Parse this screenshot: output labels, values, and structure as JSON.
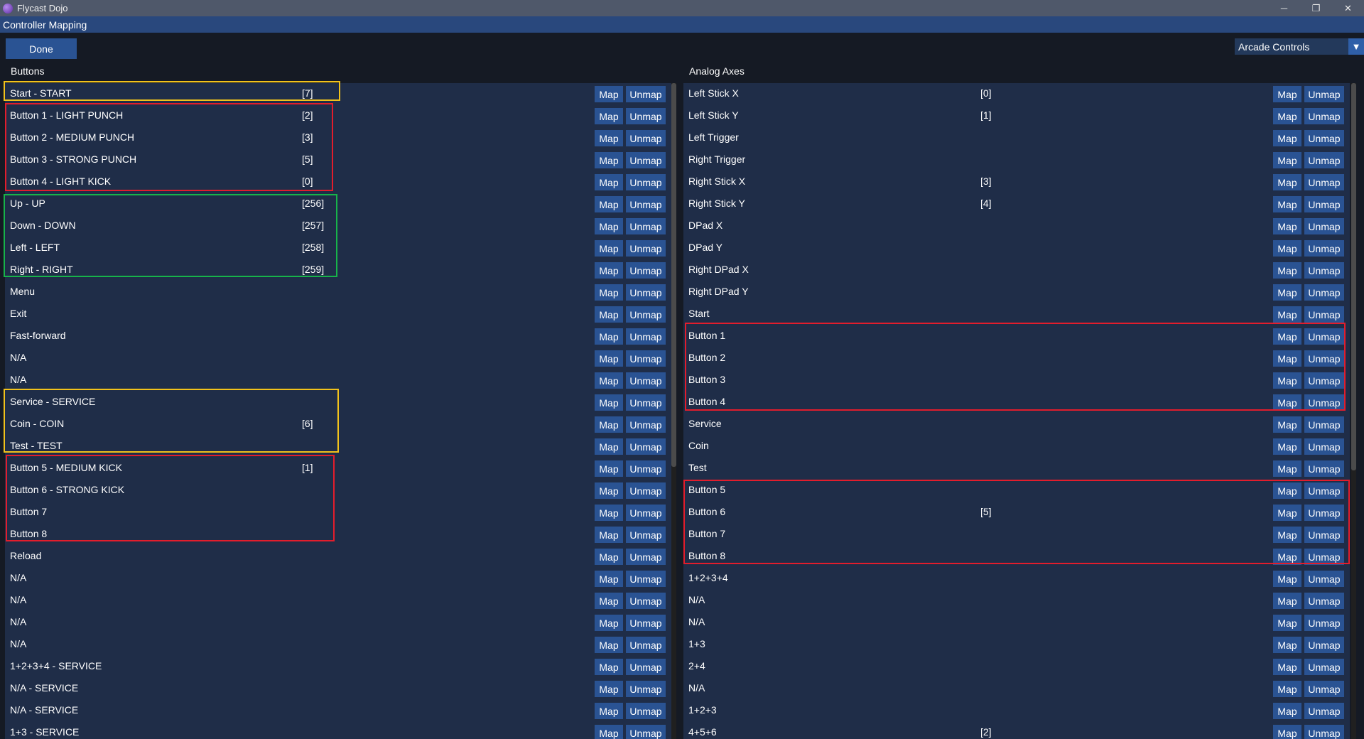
{
  "window": {
    "title": "Flycast Dojo",
    "minimize": "─",
    "restore": "❐",
    "close": "✕"
  },
  "header": {
    "title": "Controller Mapping"
  },
  "toolbar": {
    "done_label": "Done",
    "mode_value": "Arcade Controls",
    "mode_arrow": "▼"
  },
  "buttons_section": {
    "title": "Buttons",
    "rows": [
      {
        "label": "Start - START",
        "code": "[7]"
      },
      {
        "label": "Button 1 - LIGHT PUNCH",
        "code": "[2]"
      },
      {
        "label": "Button 2 - MEDIUM PUNCH",
        "code": "[3]"
      },
      {
        "label": "Button 3 - STRONG PUNCH",
        "code": "[5]"
      },
      {
        "label": "Button 4 - LIGHT KICK",
        "code": "[0]"
      },
      {
        "label": "Up - UP",
        "code": "[256]"
      },
      {
        "label": "Down - DOWN",
        "code": "[257]"
      },
      {
        "label": "Left - LEFT",
        "code": "[258]"
      },
      {
        "label": "Right - RIGHT",
        "code": "[259]"
      },
      {
        "label": "Menu",
        "code": ""
      },
      {
        "label": "Exit",
        "code": ""
      },
      {
        "label": "Fast-forward",
        "code": ""
      },
      {
        "label": "N/A",
        "code": ""
      },
      {
        "label": "N/A",
        "code": ""
      },
      {
        "label": "Service - SERVICE",
        "code": ""
      },
      {
        "label": "Coin - COIN",
        "code": "[6]"
      },
      {
        "label": "Test - TEST",
        "code": ""
      },
      {
        "label": "Button 5 - MEDIUM KICK",
        "code": "[1]"
      },
      {
        "label": "Button 6 - STRONG KICK",
        "code": ""
      },
      {
        "label": "Button 7",
        "code": ""
      },
      {
        "label": "Button 8",
        "code": ""
      },
      {
        "label": "Reload",
        "code": ""
      },
      {
        "label": "N/A",
        "code": ""
      },
      {
        "label": "N/A",
        "code": ""
      },
      {
        "label": "N/A",
        "code": ""
      },
      {
        "label": "N/A",
        "code": ""
      },
      {
        "label": "1+2+3+4 - SERVICE",
        "code": ""
      },
      {
        "label": "N/A - SERVICE",
        "code": ""
      },
      {
        "label": "N/A - SERVICE",
        "code": ""
      },
      {
        "label": "1+3 - SERVICE",
        "code": ""
      }
    ]
  },
  "axes_section": {
    "title": "Analog Axes",
    "rows": [
      {
        "label": "Left Stick X",
        "code": "[0]"
      },
      {
        "label": "Left Stick Y",
        "code": "[1]"
      },
      {
        "label": "Left Trigger",
        "code": ""
      },
      {
        "label": "Right Trigger",
        "code": ""
      },
      {
        "label": "Right Stick X",
        "code": "[3]"
      },
      {
        "label": "Right Stick Y",
        "code": "[4]"
      },
      {
        "label": "DPad X",
        "code": ""
      },
      {
        "label": "DPad Y",
        "code": ""
      },
      {
        "label": "Right DPad X",
        "code": ""
      },
      {
        "label": "Right DPad Y",
        "code": ""
      },
      {
        "label": "Start",
        "code": ""
      },
      {
        "label": "Button 1",
        "code": ""
      },
      {
        "label": "Button 2",
        "code": ""
      },
      {
        "label": "Button 3",
        "code": ""
      },
      {
        "label": "Button 4",
        "code": ""
      },
      {
        "label": "Service",
        "code": ""
      },
      {
        "label": "Coin",
        "code": ""
      },
      {
        "label": "Test",
        "code": ""
      },
      {
        "label": "Button 5",
        "code": ""
      },
      {
        "label": "Button 6",
        "code": "[5]"
      },
      {
        "label": "Button 7",
        "code": ""
      },
      {
        "label": "Button 8",
        "code": ""
      },
      {
        "label": "1+2+3+4",
        "code": ""
      },
      {
        "label": "N/A",
        "code": ""
      },
      {
        "label": "N/A",
        "code": ""
      },
      {
        "label": "1+3",
        "code": ""
      },
      {
        "label": "2+4",
        "code": ""
      },
      {
        "label": "N/A",
        "code": ""
      },
      {
        "label": "1+2+3",
        "code": ""
      },
      {
        "label": "4+5+6",
        "code": "[2]"
      }
    ]
  },
  "row_actions": {
    "map_label": "Map",
    "unmap_label": "Unmap"
  },
  "colors": {
    "panel": "#1f2d48",
    "button": "#2a5393",
    "header": "#29487d",
    "highlight_yellow": "#f2c21b",
    "highlight_red": "#e21d2c",
    "highlight_green": "#17b34a"
  }
}
